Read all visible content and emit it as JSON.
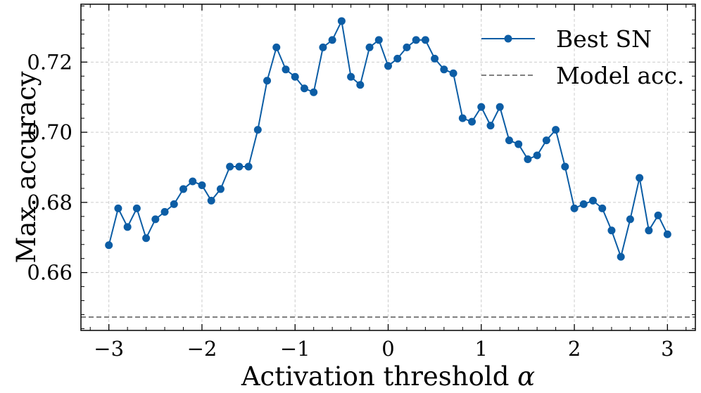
{
  "chart_data": {
    "type": "line",
    "title": "",
    "xlabel": "Activation threshold α",
    "ylabel": "Max. accuracy",
    "xlim": [
      -3.3,
      3.3
    ],
    "ylim": [
      0.6435,
      0.7365
    ],
    "x_ticks": [
      -3,
      -2,
      -1,
      0,
      1,
      2,
      3
    ],
    "x_tick_labels": [
      "−3",
      "−2",
      "−1",
      "0",
      "1",
      "2",
      "3"
    ],
    "y_ticks": [
      0.66,
      0.68,
      0.7,
      0.72
    ],
    "y_tick_labels": [
      "0.66",
      "0.68",
      "0.70",
      "0.72"
    ],
    "grid": true,
    "legend_position": "top-right",
    "colors": {
      "series": "#0c5da5",
      "reference": "#808080"
    },
    "series": [
      {
        "name": "Best SN",
        "x": [
          -3.0,
          -2.9,
          -2.8,
          -2.7,
          -2.6,
          -2.5,
          -2.4,
          -2.3,
          -2.2,
          -2.1,
          -2.0,
          -1.9,
          -1.8,
          -1.7,
          -1.6,
          -1.5,
          -1.4,
          -1.3,
          -1.2,
          -1.1,
          -1.0,
          -0.9,
          -0.8,
          -0.7,
          -0.6,
          -0.5,
          -0.4,
          -0.3,
          -0.2,
          -0.1,
          0.0,
          0.1,
          0.2,
          0.3,
          0.4,
          0.5,
          0.6,
          0.7,
          0.8,
          0.9,
          1.0,
          1.1,
          1.2,
          1.3,
          1.4,
          1.5,
          1.6,
          1.7,
          1.8,
          1.9,
          2.0,
          2.1,
          2.2,
          2.3,
          2.4,
          2.5,
          2.6,
          2.7,
          2.8,
          2.9,
          3.0
        ],
        "y": [
          0.6678,
          0.6783,
          0.673,
          0.6783,
          0.6698,
          0.6752,
          0.6773,
          0.6795,
          0.6838,
          0.686,
          0.6849,
          0.6805,
          0.6838,
          0.6902,
          0.6902,
          0.6902,
          0.7007,
          0.7147,
          0.7242,
          0.7179,
          0.7158,
          0.7125,
          0.7114,
          0.7242,
          0.7263,
          0.7317,
          0.7158,
          0.7135,
          0.7242,
          0.7263,
          0.7189,
          0.721,
          0.7242,
          0.7263,
          0.7263,
          0.721,
          0.7179,
          0.7168,
          0.704,
          0.703,
          0.7072,
          0.7019,
          0.7072,
          0.6977,
          0.6966,
          0.6923,
          0.6934,
          0.6977,
          0.7007,
          0.6902,
          0.6783,
          0.6795,
          0.6805,
          0.6783,
          0.672,
          0.6645,
          0.6752,
          0.687,
          0.672,
          0.6763,
          0.6709
        ]
      },
      {
        "name": "Model acc.",
        "style": "dashed-horizontal",
        "y": 0.6473
      }
    ]
  }
}
